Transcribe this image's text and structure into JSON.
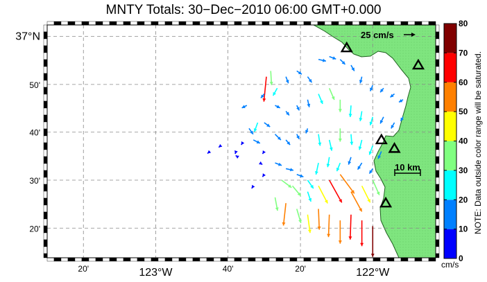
{
  "title": "MNTY Totals: 30−Dec−2010 06:00 GMT+0.000",
  "map": {
    "lat_labels": [
      {
        "text": "37°N",
        "lat": 37.0,
        "major": true
      },
      {
        "text": "50'",
        "lat": 36.833,
        "major": false
      },
      {
        "text": "40'",
        "lat": 36.667,
        "major": false
      },
      {
        "text": "30'",
        "lat": 36.5,
        "major": false
      },
      {
        "text": "20'",
        "lat": 36.333,
        "major": false
      }
    ],
    "lon_labels": [
      {
        "text": "20'",
        "lon": -123.333,
        "major": false
      },
      {
        "text": "123°W",
        "lon": -123.0,
        "major": true
      },
      {
        "text": "40'",
        "lon": -122.667,
        "major": false
      },
      {
        "text": "20'",
        "lon": -122.333,
        "major": false
      },
      {
        "text": "122°W",
        "lon": -122.0,
        "major": true
      }
    ],
    "land_color": "#7fe57f",
    "scale_vector_label": "25 cm/s",
    "scale_bar_label": "10 km",
    "stations": [
      {
        "lon": -122.12,
        "lat": 36.96
      },
      {
        "lon": -121.79,
        "lat": 36.9
      },
      {
        "lon": -121.96,
        "lat": 36.64
      },
      {
        "lon": -121.9,
        "lat": 36.61
      },
      {
        "lon": -121.94,
        "lat": 36.42
      }
    ]
  },
  "colorbar": {
    "min": 0,
    "max": 80,
    "tick_labels": [
      "80",
      "70",
      "60",
      "50",
      "40",
      "30",
      "20",
      "10",
      "0"
    ],
    "unit": "cm/s",
    "note": "NOTE: Data outside color range will be saturated.",
    "colors": [
      "#0000ff",
      "#0080ff",
      "#00ffff",
      "#80ff80",
      "#ffff00",
      "#ff8000",
      "#ff0000",
      "#800000"
    ]
  },
  "vectors": [
    {
      "lon": -122.75,
      "lat": 36.6,
      "u": -6,
      "v": -5
    },
    {
      "lon": -122.7,
      "lat": 36.62,
      "u": -5,
      "v": -4
    },
    {
      "lon": -122.63,
      "lat": 36.6,
      "u": -2,
      "v": -6
    },
    {
      "lon": -122.6,
      "lat": 36.63,
      "u": -3,
      "v": -5
    },
    {
      "lon": -122.53,
      "lat": 36.7,
      "u": -8,
      "v": -22
    },
    {
      "lon": -122.49,
      "lat": 36.86,
      "u": -6,
      "v": -60
    },
    {
      "lon": -122.47,
      "lat": 36.88,
      "u": 2,
      "v": -34
    },
    {
      "lon": -122.44,
      "lat": 36.82,
      "u": -10,
      "v": -18
    },
    {
      "lon": -122.4,
      "lat": 36.86,
      "u": 6,
      "v": -16
    },
    {
      "lon": -122.35,
      "lat": 36.88,
      "u": 12,
      "v": -8
    },
    {
      "lon": -122.3,
      "lat": 36.86,
      "u": 10,
      "v": -14
    },
    {
      "lon": -122.25,
      "lat": 36.92,
      "u": 18,
      "v": -4
    },
    {
      "lon": -122.2,
      "lat": 36.93,
      "u": 16,
      "v": -6
    },
    {
      "lon": -122.15,
      "lat": 36.92,
      "u": 12,
      "v": -12
    },
    {
      "lon": -122.1,
      "lat": 36.9,
      "u": 8,
      "v": -14
    },
    {
      "lon": -122.05,
      "lat": 36.86,
      "u": -4,
      "v": -16
    },
    {
      "lon": -122.0,
      "lat": 36.83,
      "u": -6,
      "v": -14
    },
    {
      "lon": -121.95,
      "lat": 36.82,
      "u": -8,
      "v": -10
    },
    {
      "lon": -121.9,
      "lat": 36.8,
      "u": -10,
      "v": -8
    },
    {
      "lon": -121.86,
      "lat": 36.78,
      "u": -10,
      "v": -6
    },
    {
      "lon": -122.45,
      "lat": 36.76,
      "u": 12,
      "v": -6
    },
    {
      "lon": -122.4,
      "lat": 36.74,
      "u": 8,
      "v": -10
    },
    {
      "lon": -122.35,
      "lat": 36.76,
      "u": 6,
      "v": -12
    },
    {
      "lon": -122.3,
      "lat": 36.78,
      "u": 4,
      "v": -18
    },
    {
      "lon": -122.25,
      "lat": 36.8,
      "u": 10,
      "v": -24
    },
    {
      "lon": -122.2,
      "lat": 36.82,
      "u": 12,
      "v": -28
    },
    {
      "lon": -122.15,
      "lat": 36.78,
      "u": 0,
      "v": -30
    },
    {
      "lon": -122.1,
      "lat": 36.76,
      "u": -2,
      "v": -28
    },
    {
      "lon": -122.05,
      "lat": 36.74,
      "u": -4,
      "v": -24
    },
    {
      "lon": -122.0,
      "lat": 36.72,
      "u": -6,
      "v": -20
    },
    {
      "lon": -121.95,
      "lat": 36.72,
      "u": -8,
      "v": -16
    },
    {
      "lon": -121.9,
      "lat": 36.7,
      "u": -8,
      "v": -14
    },
    {
      "lon": -121.86,
      "lat": 36.72,
      "u": -6,
      "v": -10
    },
    {
      "lon": -122.45,
      "lat": 36.66,
      "u": 14,
      "v": -14
    },
    {
      "lon": -122.4,
      "lat": 36.64,
      "u": 10,
      "v": -12
    },
    {
      "lon": -122.35,
      "lat": 36.66,
      "u": 6,
      "v": -12
    },
    {
      "lon": -122.3,
      "lat": 36.68,
      "u": -4,
      "v": -12
    },
    {
      "lon": -122.25,
      "lat": 36.66,
      "u": 4,
      "v": -28
    },
    {
      "lon": -122.2,
      "lat": 36.64,
      "u": 6,
      "v": -26
    },
    {
      "lon": -122.15,
      "lat": 36.68,
      "u": 0,
      "v": -32
    },
    {
      "lon": -122.1,
      "lat": 36.66,
      "u": 2,
      "v": -26
    },
    {
      "lon": -122.05,
      "lat": 36.64,
      "u": -6,
      "v": -24
    },
    {
      "lon": -122.0,
      "lat": 36.62,
      "u": -8,
      "v": -22
    },
    {
      "lon": -121.96,
      "lat": 36.6,
      "u": -8,
      "v": -18
    },
    {
      "lon": -122.45,
      "lat": 36.56,
      "u": 16,
      "v": -6
    },
    {
      "lon": -122.4,
      "lat": 36.54,
      "u": 18,
      "v": -4
    },
    {
      "lon": -122.35,
      "lat": 36.52,
      "u": 16,
      "v": -6
    },
    {
      "lon": -122.3,
      "lat": 36.5,
      "u": 14,
      "v": -20
    },
    {
      "lon": -122.25,
      "lat": 36.56,
      "u": -6,
      "v": -28
    },
    {
      "lon": -122.2,
      "lat": 36.58,
      "u": -4,
      "v": -24
    },
    {
      "lon": -122.15,
      "lat": 36.56,
      "u": -8,
      "v": -20
    },
    {
      "lon": -122.1,
      "lat": 36.58,
      "u": -6,
      "v": -18
    },
    {
      "lon": -122.05,
      "lat": 36.56,
      "u": -10,
      "v": -16
    },
    {
      "lon": -122.0,
      "lat": 36.54,
      "u": -8,
      "v": -12
    },
    {
      "lon": -122.42,
      "lat": 36.5,
      "u": 24,
      "v": -18
    },
    {
      "lon": -122.37,
      "lat": 36.48,
      "u": 20,
      "v": -24
    },
    {
      "lon": -122.3,
      "lat": 36.46,
      "u": 8,
      "v": -24
    },
    {
      "lon": -122.25,
      "lat": 36.48,
      "u": 22,
      "v": -42
    },
    {
      "lon": -122.2,
      "lat": 36.5,
      "u": 30,
      "v": -54
    },
    {
      "lon": -122.15,
      "lat": 36.52,
      "u": 34,
      "v": -46
    },
    {
      "lon": -122.1,
      "lat": 36.46,
      "u": 26,
      "v": -48
    },
    {
      "lon": -122.05,
      "lat": 36.48,
      "u": 20,
      "v": -40
    },
    {
      "lon": -122.0,
      "lat": 36.5,
      "u": 16,
      "v": -36
    },
    {
      "lon": -122.35,
      "lat": 36.4,
      "u": 10,
      "v": -34
    },
    {
      "lon": -122.3,
      "lat": 36.38,
      "u": 6,
      "v": -44
    },
    {
      "lon": -122.25,
      "lat": 36.4,
      "u": 2,
      "v": -50
    },
    {
      "lon": -122.2,
      "lat": 36.38,
      "u": -2,
      "v": -54
    },
    {
      "lon": -122.15,
      "lat": 36.36,
      "u": 0,
      "v": -56
    },
    {
      "lon": -122.1,
      "lat": 36.38,
      "u": -2,
      "v": -60
    },
    {
      "lon": -122.05,
      "lat": 36.36,
      "u": 0,
      "v": -62
    },
    {
      "lon": -122.0,
      "lat": 36.34,
      "u": 0,
      "v": -74
    },
    {
      "lon": -122.4,
      "lat": 36.42,
      "u": -6,
      "v": -54
    },
    {
      "lon": -122.45,
      "lat": 36.44,
      "u": 6,
      "v": -32
    },
    {
      "lon": -122.5,
      "lat": 36.52,
      "u": -4,
      "v": -6
    },
    {
      "lon": -122.52,
      "lat": 36.56,
      "u": 6,
      "v": -4
    },
    {
      "lon": -122.55,
      "lat": 36.48,
      "u": -4,
      "v": -6
    },
    {
      "lon": -122.5,
      "lat": 36.6,
      "u": -4,
      "v": -6
    },
    {
      "lon": -122.55,
      "lat": 36.64,
      "u": 16,
      "v": -8
    },
    {
      "lon": -122.5,
      "lat": 36.7,
      "u": 14,
      "v": -10
    },
    {
      "lon": -122.57,
      "lat": 36.68,
      "u": 10,
      "v": -14
    },
    {
      "lon": -122.62,
      "lat": 36.58,
      "u": -6,
      "v": 4
    },
    {
      "lon": -122.58,
      "lat": 36.76,
      "u": -12,
      "v": -6
    },
    {
      "lon": -122.5,
      "lat": 36.8,
      "u": -8,
      "v": -10
    }
  ]
}
